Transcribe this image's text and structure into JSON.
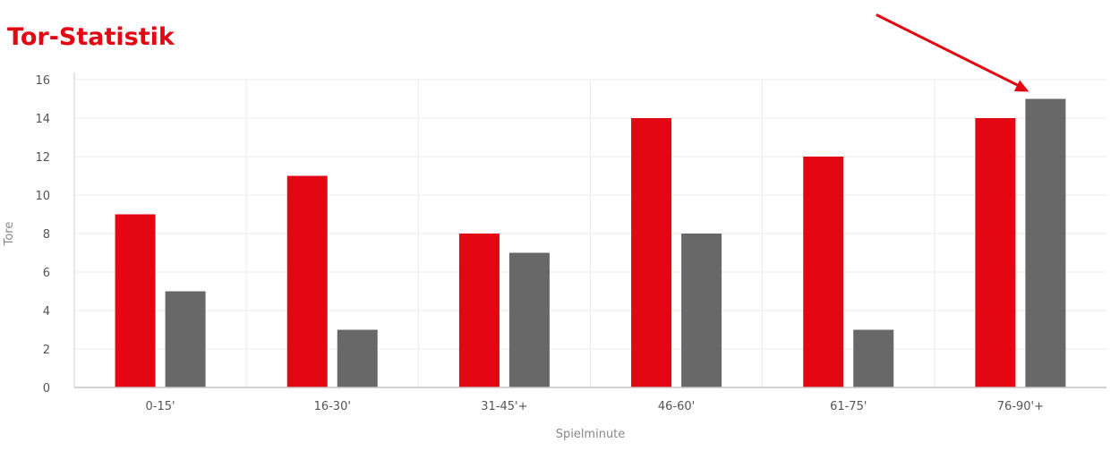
{
  "chart_data": {
    "type": "bar",
    "title": "Tor-Statistik",
    "xlabel": "Spielminute",
    "ylabel": "Tore",
    "categories": [
      "0-15'",
      "16-30'",
      "31-45'+",
      "46-60'",
      "61-75'",
      "76-90'+"
    ],
    "series": [
      {
        "values": [
          9,
          11,
          8,
          14,
          12,
          14
        ],
        "color": "#e30613"
      },
      {
        "values": [
          5,
          3,
          7,
          8,
          3,
          15
        ],
        "color": "#686868"
      }
    ],
    "ylim": [
      0,
      16
    ],
    "yticks": [
      0,
      2,
      4,
      6,
      8,
      10,
      12,
      14,
      16
    ],
    "grid": true,
    "legend": "none",
    "annotation": {
      "type": "arrow",
      "target": "76-90'+ second series bar",
      "color": "#e30613"
    }
  }
}
